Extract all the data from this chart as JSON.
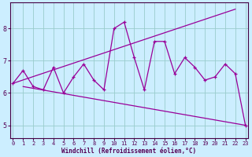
{
  "xlabel": "Windchill (Refroidissement éolien,°C)",
  "x": [
    0,
    1,
    2,
    3,
    4,
    5,
    6,
    7,
    8,
    9,
    10,
    11,
    12,
    13,
    14,
    15,
    16,
    17,
    18,
    19,
    20,
    21,
    22,
    23
  ],
  "line1": [
    6.3,
    6.7,
    6.2,
    6.1,
    6.8,
    6.0,
    6.5,
    6.9,
    6.4,
    6.1,
    8.0,
    8.2,
    7.1,
    6.1,
    7.6,
    7.6,
    6.6,
    7.1,
    6.8,
    6.4,
    6.5,
    6.9,
    6.6,
    5.0
  ],
  "line2_x": [
    0,
    22
  ],
  "line2_y": [
    6.3,
    8.6
  ],
  "line3_x": [
    1,
    23
  ],
  "line3_y": [
    6.2,
    5.0
  ],
  "bg_color": "#cceeff",
  "line_color": "#990099",
  "grid_color": "#99cccc",
  "ylim": [
    4.6,
    8.8
  ],
  "xlim": [
    -0.3,
    23.3
  ],
  "yticks": [
    5,
    6,
    7,
    8
  ],
  "xticks": [
    0,
    1,
    2,
    3,
    4,
    5,
    6,
    7,
    8,
    9,
    10,
    11,
    12,
    13,
    14,
    15,
    16,
    17,
    18,
    19,
    20,
    21,
    22,
    23
  ]
}
